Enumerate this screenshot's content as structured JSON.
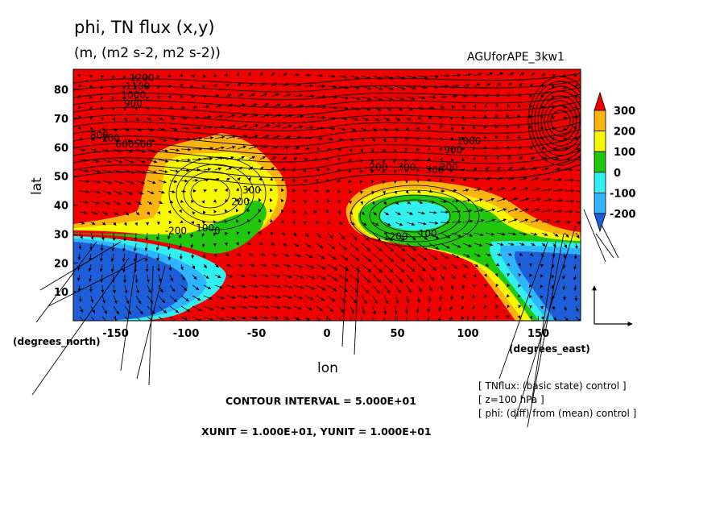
{
  "figure": {
    "title": "phi, TN flux (x,y)",
    "subtitle": "(m, (m2 s-2, m2 s-2))",
    "tag": "AGUforAPE_3kw1",
    "contour_interval": "CONTOUR INTERVAL = 5.000E+01",
    "units_line": "XUNIT = 1.000E+01, YUNIT = 1.000E+01",
    "notes": [
      "[ TNflux: (basic state) control ]",
      "[ z=100 hPa ]",
      "[ phi: (diff) from (mean) control ]"
    ]
  },
  "chart_data": {
    "type": "heatmap",
    "title": "phi, TN flux (x,y)",
    "xlabel": "lon",
    "ylabel": "lat",
    "x_unit_label": "(degrees_east)",
    "y_unit_label": "(degrees_north)",
    "xlim": [
      -180,
      180
    ],
    "ylim": [
      0,
      87
    ],
    "xticks": [
      "-150",
      "-100",
      "-50",
      "0",
      "50",
      "100",
      "150"
    ],
    "yticks": [
      "10",
      "20",
      "30",
      "40",
      "50",
      "60",
      "70",
      "80"
    ],
    "colorbar": {
      "levels": [
        -200,
        -100,
        0,
        100,
        200,
        300
      ],
      "labels": [
        "300",
        "200",
        "100",
        "0",
        "-100",
        "-200"
      ],
      "colors": [
        "#1e5fd9",
        "#2fb4ff",
        "#30f0f0",
        "#21c70e",
        "#f8f800",
        "#fbb30f",
        "#f10000"
      ]
    },
    "contour_labels": [
      {
        "text": "1200",
        "lon": -140,
        "lat": 83
      },
      {
        "text": "1100",
        "lon": -143,
        "lat": 80
      },
      {
        "text": "1000",
        "lon": -146,
        "lat": 77
      },
      {
        "text": "900",
        "lon": -144,
        "lat": 74
      },
      {
        "text": "800",
        "lon": -168,
        "lat": 63
      },
      {
        "text": "700",
        "lon": -160,
        "lat": 62
      },
      {
        "text": "600",
        "lon": -150,
        "lat": 60
      },
      {
        "text": "500",
        "lon": -137,
        "lat": 60
      },
      {
        "text": "300",
        "lon": -60,
        "lat": 44
      },
      {
        "text": "200",
        "lon": -68,
        "lat": 40
      },
      {
        "text": "100",
        "lon": -93,
        "lat": 31
      },
      {
        "text": "-200",
        "lon": -115,
        "lat": 30
      },
      {
        "text": "0",
        "lon": -80,
        "lat": 30
      },
      {
        "text": "200",
        "lon": 30,
        "lat": 52
      },
      {
        "text": "300",
        "lon": 50,
        "lat": 52
      },
      {
        "text": "300",
        "lon": 70,
        "lat": 51
      },
      {
        "text": "200",
        "lon": 80,
        "lat": 52
      },
      {
        "text": "900",
        "lon": 83,
        "lat": 58
      },
      {
        "text": "1000",
        "lon": 92,
        "lat": 61
      },
      {
        "text": "100",
        "lon": 65,
        "lat": 29
      },
      {
        "text": "1200",
        "lon": 40,
        "lat": 28
      }
    ],
    "reference_vector": {
      "x": 10,
      "y": 10
    }
  }
}
